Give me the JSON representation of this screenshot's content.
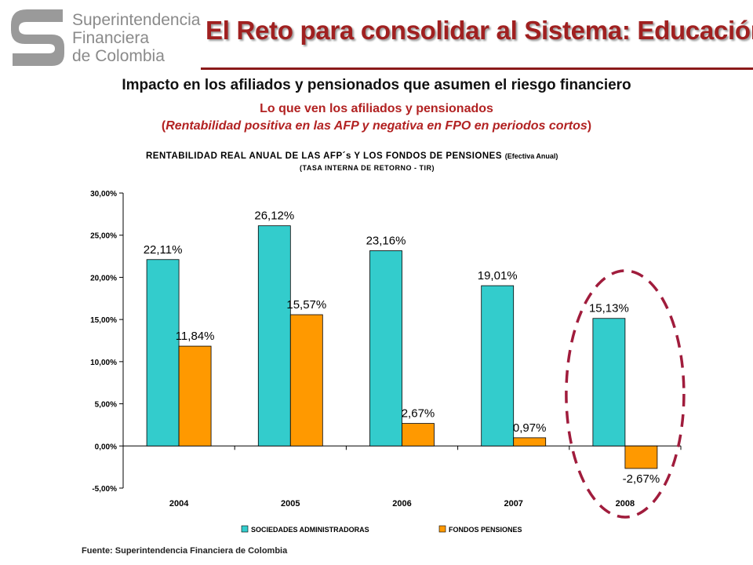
{
  "header": {
    "logo_lines": [
      "Superintendencia",
      "Financiera",
      "de Colombia"
    ],
    "title": "El Reto para consolidar al Sistema: Educación",
    "subtitle": "Impacto en los afiliados y pensionados que asumen el riesgo financiero",
    "caption_line1": "Lo que ven los afiliados y pensionados",
    "caption_line2_open": "(",
    "caption_line2_italic": "Rentabilidad positiva en las AFP y negativa en FPO en periodos cortos",
    "caption_line2_close": ")"
  },
  "colors": {
    "title": "#a02020",
    "caption": "#b22222",
    "series_afp": "#33cccc",
    "series_fpo": "#ff9900",
    "highlight_ellipse": "#a01c3c"
  },
  "chart_data": {
    "type": "bar",
    "title": "RENTABILIDAD REAL ANUAL DE LAS AFP´s Y LOS FONDOS DE PENSIONES",
    "title_suffix": "(Efectiva Anual)",
    "subtitle": "(TASA INTERNA DE RETORNO - TIR)",
    "categories": [
      "2004",
      "2005",
      "2006",
      "2007",
      "2008"
    ],
    "series": [
      {
        "name": "SOCIEDADES ADMINISTRADORAS",
        "values": [
          22.11,
          26.12,
          23.16,
          19.01,
          15.13
        ],
        "labels": [
          "22,11%",
          "26,12%",
          "23,16%",
          "19,01%",
          "15,13%"
        ]
      },
      {
        "name": "FONDOS PENSIONES",
        "values": [
          11.84,
          15.57,
          2.67,
          0.97,
          -2.67
        ],
        "labels": [
          "11,84%",
          "15,57%",
          "2,67%",
          "0,97%",
          "-2,67%"
        ]
      }
    ],
    "ylim": [
      -5,
      30
    ],
    "y_ticks": [
      30,
      25,
      20,
      15,
      10,
      5,
      0,
      -5
    ],
    "y_tick_labels": [
      "30,00%",
      "25,00%",
      "20,00%",
      "15,00%",
      "10,00%",
      "5,00%",
      "0,00%",
      "-5,00%"
    ],
    "legend_position": "bottom",
    "highlighted_category": "2008",
    "grid": false
  },
  "footer": {
    "source": "Fuente: Superintendencia Financiera de Colombia"
  }
}
